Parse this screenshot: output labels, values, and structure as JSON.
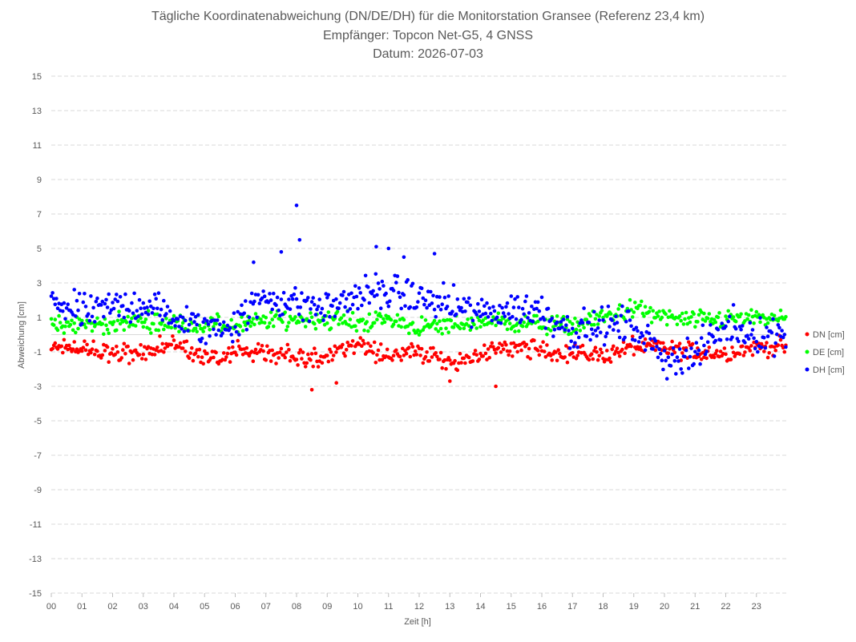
{
  "chart_data": {
    "type": "scatter",
    "title": "Tägliche Koordinatenabweichung (DN/DE/DH) für die Monitorstation Gransee (Referenz 23,4 km)",
    "subtitle": "Empfänger: Topcon Net-G5, 4 GNSS",
    "date_line": "Datum: 2026-07-03",
    "xlabel": "Zeit [h]",
    "ylabel": "Abweichung [cm]",
    "xlim": [
      0,
      24
    ],
    "ylim": [
      -15,
      15
    ],
    "yticks": [
      -15,
      -13,
      -11,
      -9,
      -7,
      -5,
      -3,
      -1,
      1,
      3,
      5,
      7,
      9,
      11,
      13,
      15
    ],
    "xticks": [
      "00",
      "01",
      "02",
      "03",
      "04",
      "05",
      "06",
      "07",
      "08",
      "09",
      "10",
      "11",
      "12",
      "13",
      "14",
      "15",
      "16",
      "17",
      "18",
      "19",
      "20",
      "21",
      "22",
      "23"
    ],
    "grid": true,
    "legend_position": "right",
    "points_per_hour": 24,
    "series": [
      {
        "name": "DN [cm]",
        "color": "#ff0000",
        "hourly_mean": [
          -0.8,
          -0.8,
          -1.2,
          -0.9,
          -0.6,
          -1.3,
          -1.0,
          -1.1,
          -1.3,
          -1.3,
          -0.6,
          -1.2,
          -1.0,
          -1.6,
          -1.2,
          -0.7,
          -0.9,
          -1.1,
          -1.2,
          -0.7,
          -0.8,
          -1.0,
          -1.1,
          -0.7
        ],
        "spread": 0.8
      },
      {
        "name": "DE [cm]",
        "color": "#00ff00",
        "hourly_mean": [
          0.5,
          0.6,
          0.6,
          0.8,
          0.6,
          0.6,
          0.5,
          0.8,
          0.9,
          0.9,
          0.7,
          0.9,
          0.4,
          0.5,
          0.8,
          0.7,
          0.6,
          0.5,
          1.0,
          1.5,
          1.0,
          0.8,
          0.9,
          0.9
        ],
        "spread": 0.8
      },
      {
        "name": "DH [cm]",
        "color": "#0000ff",
        "hourly_mean": [
          2.0,
          1.2,
          1.6,
          1.8,
          1.0,
          0.3,
          0.7,
          2.2,
          1.8,
          1.5,
          2.3,
          2.5,
          2.1,
          1.7,
          1.2,
          1.5,
          1.4,
          0.2,
          0.5,
          0.5,
          -1.4,
          -1.2,
          0.5,
          0.0
        ],
        "spread": 1.5
      }
    ],
    "outliers": {
      "DH [cm]": [
        [
          8.0,
          7.5
        ],
        [
          8.1,
          5.5
        ],
        [
          7.5,
          4.8
        ],
        [
          6.6,
          4.2
        ],
        [
          10.6,
          5.1
        ],
        [
          11.0,
          5.0
        ],
        [
          12.5,
          4.7
        ],
        [
          11.5,
          4.5
        ]
      ],
      "DN [cm]": [
        [
          8.5,
          -3.2
        ],
        [
          14.5,
          -3.0
        ],
        [
          9.3,
          -2.8
        ],
        [
          13.0,
          -2.7
        ]
      ]
    }
  }
}
